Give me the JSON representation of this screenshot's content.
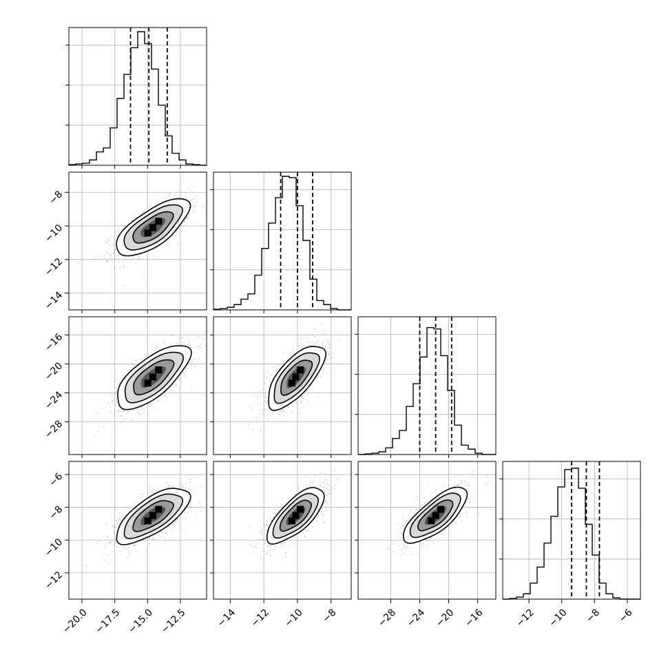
{
  "chart_data": {
    "type": "corner",
    "grid": true,
    "parameters": [
      {
        "index": 0,
        "range": [
          -21.0,
          -10.5
        ],
        "ticks": [
          -20.0,
          -17.5,
          -15.0,
          -12.5
        ],
        "tick_labels": [
          "−20.0",
          "−17.5",
          "−15.0",
          "−12.5"
        ],
        "quantiles": [
          -16.3,
          -14.9,
          -13.5
        ],
        "histogram": [
          0.005,
          0.01,
          0.015,
          0.04,
          0.1,
          0.13,
          0.28,
          0.5,
          0.68,
          0.88,
          1.0,
          0.91,
          0.72,
          0.45,
          0.22,
          0.09,
          0.04,
          0.01,
          0.005,
          0.0
        ]
      },
      {
        "index": 1,
        "range": [
          -15.0,
          -6.8
        ],
        "ticks": [
          -14,
          -12,
          -10,
          -8
        ],
        "tick_labels": [
          "−14",
          "−12",
          "−10",
          "−8"
        ],
        "quantiles": [
          -11.0,
          -10.0,
          -9.1
        ],
        "histogram": [
          0.005,
          0.01,
          0.02,
          0.04,
          0.08,
          0.12,
          0.26,
          0.46,
          0.65,
          0.84,
          1.0,
          0.99,
          0.78,
          0.52,
          0.23,
          0.07,
          0.04,
          0.01,
          0.0,
          0.0
        ]
      },
      {
        "index": 2,
        "range": [
          -32.5,
          -13.5
        ],
        "ticks": [
          -28,
          -24,
          -20,
          -16
        ],
        "tick_labels": [
          "−28",
          "−24",
          "−20",
          "−16"
        ],
        "quantiles": [
          -24.0,
          -21.8,
          -19.6
        ],
        "histogram": [
          0.0,
          0.005,
          0.01,
          0.02,
          0.05,
          0.12,
          0.18,
          0.36,
          0.53,
          0.73,
          0.95,
          0.94,
          0.74,
          0.48,
          0.22,
          0.07,
          0.04,
          0.01,
          0.0,
          0.0
        ]
      },
      {
        "index": 3,
        "range": [
          -13.6,
          -5.2
        ],
        "ticks": [
          -12,
          -10,
          -8,
          -6
        ],
        "tick_labels": [
          "−12",
          "−10",
          "−8",
          "−6"
        ],
        "quantiles": [
          -9.4,
          -8.5,
          -7.7
        ],
        "histogram": [
          0.0,
          0.005,
          0.015,
          0.04,
          0.12,
          0.24,
          0.42,
          0.62,
          0.84,
          0.97,
          0.98,
          0.83,
          0.56,
          0.33,
          0.12,
          0.04,
          0.01,
          0.0,
          0.0,
          0.0
        ]
      }
    ],
    "joint": [
      {
        "row": 1,
        "col": 0,
        "mean": [
          -14.6,
          -10.1
        ],
        "sd": [
          1.4,
          0.85
        ],
        "rho": 0.7
      },
      {
        "row": 2,
        "col": 0,
        "mean": [
          -14.6,
          -21.8
        ],
        "sd": [
          1.4,
          2.2
        ],
        "rho": 0.7
      },
      {
        "row": 2,
        "col": 1,
        "mean": [
          -10.1,
          -21.8
        ],
        "sd": [
          0.85,
          2.2
        ],
        "rho": 0.7
      },
      {
        "row": 3,
        "col": 0,
        "mean": [
          -14.6,
          -8.5
        ],
        "sd": [
          1.4,
          0.85
        ],
        "rho": 0.7
      },
      {
        "row": 3,
        "col": 1,
        "mean": [
          -10.1,
          -8.5
        ],
        "sd": [
          0.85,
          0.85
        ],
        "rho": 0.72
      },
      {
        "row": 3,
        "col": 2,
        "mean": [
          -21.8,
          -8.5
        ],
        "sd": [
          2.2,
          0.85
        ],
        "rho": 0.75
      }
    ]
  }
}
